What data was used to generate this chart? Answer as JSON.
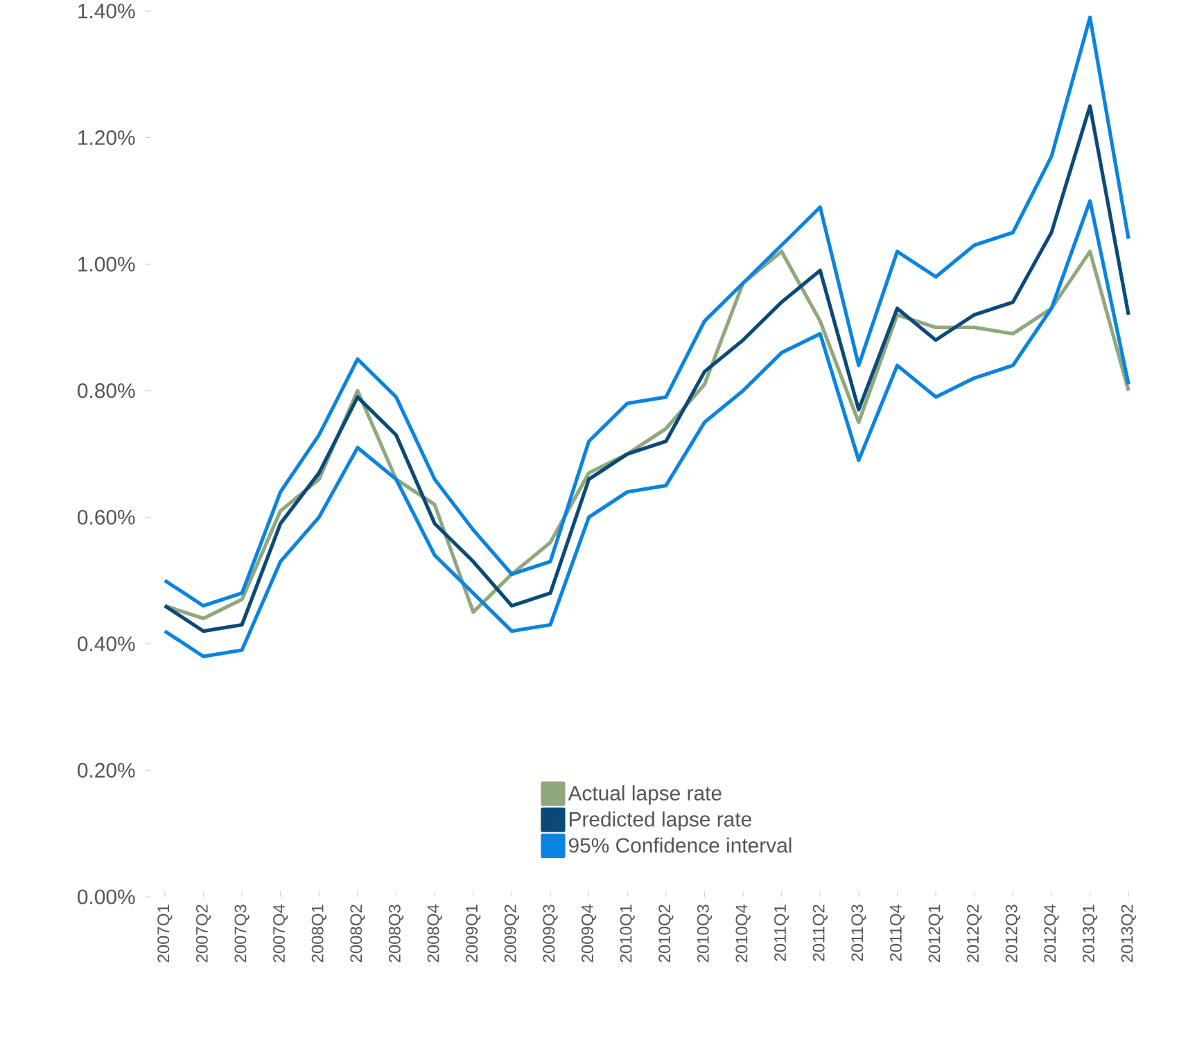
{
  "chart_data": {
    "type": "line",
    "categories": [
      "2007Q1",
      "2007Q2",
      "2007Q3",
      "2007Q4",
      "2008Q1",
      "2008Q2",
      "2008Q3",
      "2008Q4",
      "2009Q1",
      "2009Q2",
      "2009Q3",
      "2009Q4",
      "2010Q1",
      "2010Q2",
      "2010Q3",
      "2010Q4",
      "2011Q1",
      "2011Q2",
      "2011Q3",
      "2011Q4",
      "2012Q1",
      "2012Q2",
      "2012Q3",
      "2012Q4",
      "2013Q1",
      "2013Q2"
    ],
    "series": [
      {
        "name": "Actual lapse rate",
        "color": "#8fa87e",
        "values": [
          0.46,
          0.44,
          0.47,
          0.61,
          0.66,
          0.8,
          0.66,
          0.62,
          0.45,
          0.51,
          0.56,
          0.67,
          0.7,
          0.74,
          0.81,
          0.97,
          1.02,
          0.91,
          0.75,
          0.92,
          0.9,
          0.9,
          0.89,
          0.93,
          1.02,
          0.8
        ]
      },
      {
        "name": "Predicted lapse rate",
        "color": "#0b4a78",
        "values": [
          0.46,
          0.42,
          0.43,
          0.59,
          0.67,
          0.79,
          0.73,
          0.59,
          0.53,
          0.46,
          0.48,
          0.66,
          0.7,
          0.72,
          0.83,
          0.88,
          0.94,
          0.99,
          0.77,
          0.93,
          0.88,
          0.92,
          0.94,
          1.05,
          1.25,
          0.92
        ]
      },
      {
        "name": "95% Confidence interval",
        "color": "#0a84e0",
        "values": [
          0.5,
          0.46,
          0.48,
          0.64,
          0.73,
          0.85,
          0.79,
          0.66,
          0.58,
          0.51,
          0.53,
          0.72,
          0.78,
          0.79,
          0.91,
          0.97,
          1.03,
          1.09,
          0.84,
          1.02,
          0.98,
          1.03,
          1.05,
          1.17,
          1.39,
          1.04
        ]
      },
      {
        "color": "#0a84e0",
        "values": [
          0.42,
          0.38,
          0.39,
          0.53,
          0.6,
          0.71,
          0.66,
          0.54,
          0.48,
          0.42,
          0.43,
          0.6,
          0.64,
          0.65,
          0.75,
          0.8,
          0.86,
          0.89,
          0.69,
          0.84,
          0.79,
          0.82,
          0.84,
          0.93,
          1.1,
          0.81
        ]
      }
    ],
    "ylim": [
      0,
      1.4
    ],
    "yticks": [
      {
        "value": 0,
        "label": "0.00%"
      },
      {
        "value": 0.2,
        "label": "0.20%"
      },
      {
        "value": 0.4,
        "label": "0.40%"
      },
      {
        "value": 0.6,
        "label": "0.60%"
      },
      {
        "value": 0.8,
        "label": "0.80%"
      },
      {
        "value": 1.0,
        "label": "1.00%"
      },
      {
        "value": 1.2,
        "label": "1.20%"
      },
      {
        "value": 1.4,
        "label": "1.40%"
      }
    ],
    "grid": false,
    "legend": "bottom"
  }
}
